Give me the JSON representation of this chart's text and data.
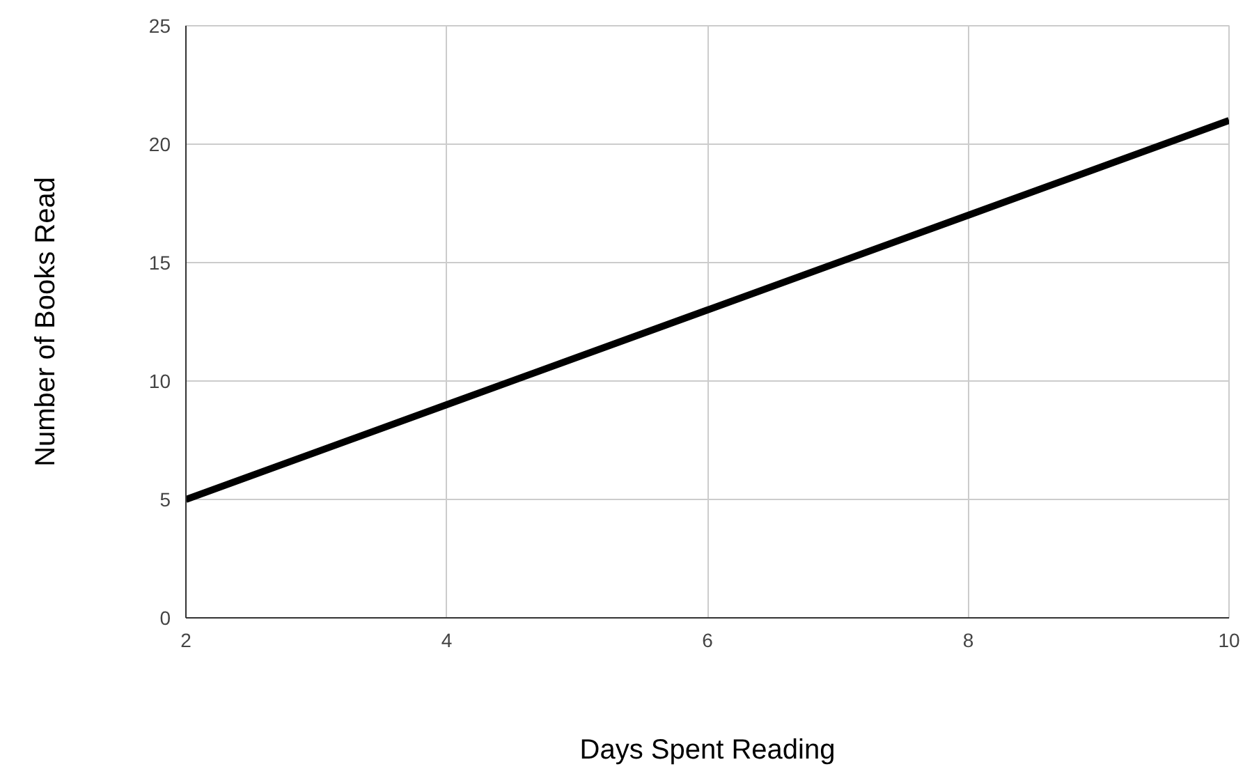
{
  "chart_data": {
    "type": "line",
    "xlabel": "Days Spent Reading",
    "ylabel": "Number of Books Read",
    "x": [
      2,
      4,
      6,
      8,
      10
    ],
    "series": [
      {
        "color": "#000000",
        "values": [
          5,
          9,
          13,
          17,
          21
        ]
      }
    ],
    "xlim": [
      2,
      10
    ],
    "xticks": [
      2,
      4,
      6,
      8,
      10
    ],
    "ylim": [
      0,
      25
    ],
    "yticks": [
      0,
      5,
      10,
      15,
      20,
      25
    ],
    "grid": true,
    "marker": "none",
    "line_style": "solid"
  }
}
